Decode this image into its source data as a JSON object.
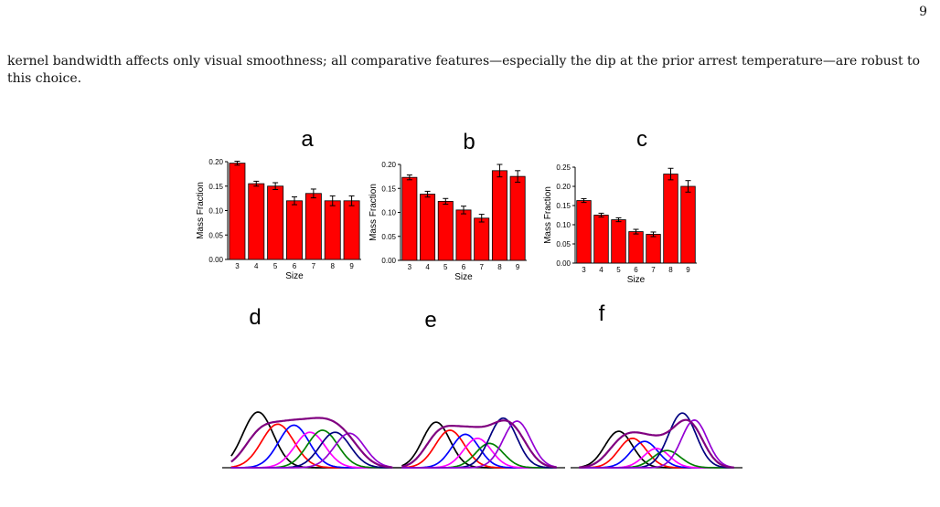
{
  "page": {
    "number": "9",
    "paragraph": "kernel bandwidth affects only visual smoothness; all comparative features—especially the dip at the prior arrest temperature—are robust to this choice."
  },
  "figure": {
    "bar_panels": [
      {
        "letter": "a",
        "xlabel": "Size",
        "ylabel": "Mass Fraction",
        "ylim": [
          0,
          0.2
        ],
        "yticks": [
          0.0,
          0.05,
          0.1,
          0.15,
          0.2
        ],
        "categories": [
          "3",
          "4",
          "5",
          "6",
          "7",
          "8",
          "9"
        ],
        "values": [
          0.197,
          0.155,
          0.15,
          0.12,
          0.135,
          0.12,
          0.12
        ],
        "errors": [
          0.004,
          0.005,
          0.007,
          0.008,
          0.009,
          0.01,
          0.01
        ]
      },
      {
        "letter": "b",
        "xlabel": "Size",
        "ylabel": "Mass Fraction",
        "ylim": [
          0,
          0.2
        ],
        "yticks": [
          0.0,
          0.05,
          0.1,
          0.15,
          0.2
        ],
        "categories": [
          "3",
          "4",
          "5",
          "6",
          "7",
          "8",
          "9"
        ],
        "values": [
          0.173,
          0.138,
          0.123,
          0.105,
          0.088,
          0.187,
          0.175
        ],
        "errors": [
          0.005,
          0.006,
          0.006,
          0.008,
          0.008,
          0.013,
          0.012
        ]
      },
      {
        "letter": "c",
        "xlabel": "Size",
        "ylabel": "Mass Fraction",
        "ylim": [
          0,
          0.25
        ],
        "yticks": [
          0.0,
          0.05,
          0.1,
          0.15,
          0.2,
          0.25
        ],
        "categories": [
          "3",
          "4",
          "5",
          "6",
          "7",
          "8",
          "9"
        ],
        "values": [
          0.163,
          0.125,
          0.113,
          0.082,
          0.075,
          0.232,
          0.2
        ],
        "errors": [
          0.005,
          0.005,
          0.005,
          0.006,
          0.006,
          0.015,
          0.015
        ]
      }
    ],
    "curve_panels": [
      {
        "letter": "d",
        "components": [
          {
            "color": "#000000",
            "center": 0.2,
            "width": 0.085,
            "height": 0.55
          },
          {
            "color": "#ff0000",
            "center": 0.31,
            "width": 0.09,
            "height": 0.43
          },
          {
            "color": "#0000ff",
            "center": 0.4,
            "width": 0.085,
            "height": 0.42
          },
          {
            "color": "#ff00ff",
            "center": 0.49,
            "width": 0.085,
            "height": 0.35
          },
          {
            "color": "#008000",
            "center": 0.56,
            "width": 0.085,
            "height": 0.37
          },
          {
            "color": "#000080",
            "center": 0.63,
            "width": 0.085,
            "height": 0.35
          },
          {
            "color": "#9400d3",
            "center": 0.71,
            "width": 0.085,
            "height": 0.34
          }
        ],
        "envelope_color": "#800080"
      },
      {
        "letter": "e",
        "components": [
          {
            "color": "#000000",
            "center": 0.25,
            "width": 0.08,
            "height": 0.45
          },
          {
            "color": "#ff0000",
            "center": 0.33,
            "width": 0.085,
            "height": 0.37
          },
          {
            "color": "#0000ff",
            "center": 0.42,
            "width": 0.08,
            "height": 0.33
          },
          {
            "color": "#ff00ff",
            "center": 0.49,
            "width": 0.08,
            "height": 0.29
          },
          {
            "color": "#008000",
            "center": 0.56,
            "width": 0.08,
            "height": 0.24
          },
          {
            "color": "#000080",
            "center": 0.64,
            "width": 0.08,
            "height": 0.49
          },
          {
            "color": "#9400d3",
            "center": 0.72,
            "width": 0.08,
            "height": 0.46
          }
        ],
        "envelope_color": "#800080"
      },
      {
        "letter": "f",
        "components": [
          {
            "color": "#000000",
            "center": 0.28,
            "width": 0.08,
            "height": 0.36
          },
          {
            "color": "#ff0000",
            "center": 0.36,
            "width": 0.08,
            "height": 0.29
          },
          {
            "color": "#0000ff",
            "center": 0.43,
            "width": 0.08,
            "height": 0.26
          },
          {
            "color": "#ff00ff",
            "center": 0.5,
            "width": 0.075,
            "height": 0.19
          },
          {
            "color": "#008000",
            "center": 0.56,
            "width": 0.08,
            "height": 0.17
          },
          {
            "color": "#000080",
            "center": 0.65,
            "width": 0.08,
            "height": 0.54
          },
          {
            "color": "#9400d3",
            "center": 0.72,
            "width": 0.075,
            "height": 0.47
          }
        ],
        "envelope_color": "#800080"
      }
    ]
  },
  "chart_data": [
    {
      "type": "bar",
      "title": "a",
      "xlabel": "Size",
      "ylabel": "Mass Fraction",
      "ylim": [
        0,
        0.2
      ],
      "categories": [
        "3",
        "4",
        "5",
        "6",
        "7",
        "8",
        "9"
      ],
      "values": [
        0.197,
        0.155,
        0.15,
        0.12,
        0.135,
        0.12,
        0.12
      ]
    },
    {
      "type": "bar",
      "title": "b",
      "xlabel": "Size",
      "ylabel": "Mass Fraction",
      "ylim": [
        0,
        0.2
      ],
      "categories": [
        "3",
        "4",
        "5",
        "6",
        "7",
        "8",
        "9"
      ],
      "values": [
        0.173,
        0.138,
        0.123,
        0.105,
        0.088,
        0.187,
        0.175
      ]
    },
    {
      "type": "bar",
      "title": "c",
      "xlabel": "Size",
      "ylabel": "Mass Fraction",
      "ylim": [
        0,
        0.25
      ],
      "categories": [
        "3",
        "4",
        "5",
        "6",
        "7",
        "8",
        "9"
      ],
      "values": [
        0.163,
        0.125,
        0.113,
        0.082,
        0.075,
        0.232,
        0.2
      ]
    }
  ]
}
